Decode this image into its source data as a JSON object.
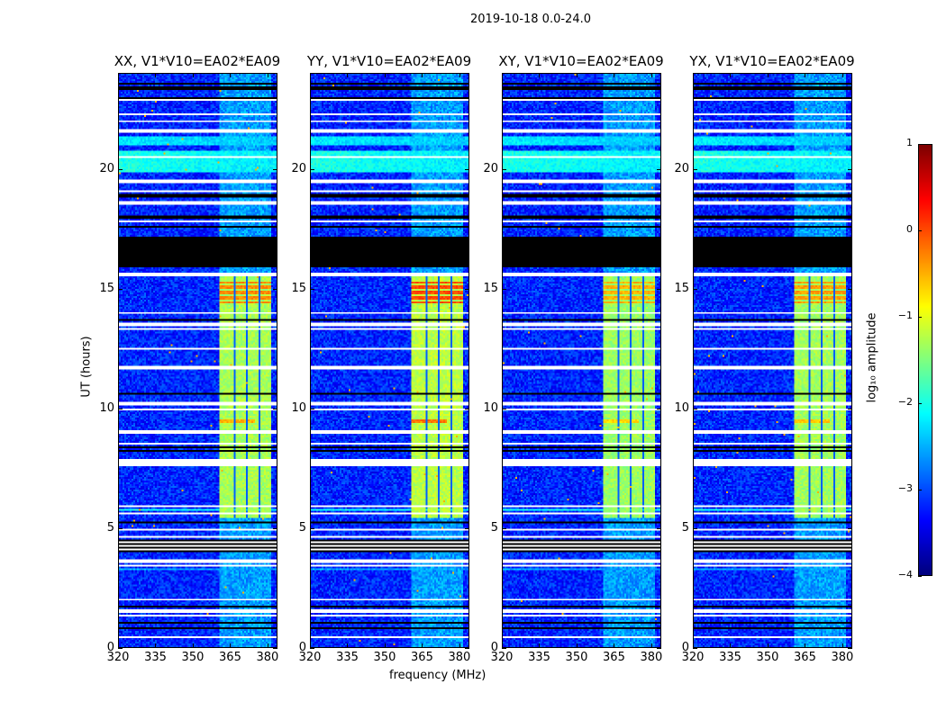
{
  "suptitle": "2019-10-18 0.0-24.0",
  "chart_data": {
    "type": "heatmap",
    "xlabel": "frequency (MHz)",
    "ylabel": "UT (hours)",
    "xlim": [
      320,
      384
    ],
    "ylim": [
      0,
      24
    ],
    "xticks": [
      "320",
      "335",
      "350",
      "365",
      "380"
    ],
    "yticks": [
      "0",
      "5",
      "10",
      "15",
      "20"
    ],
    "colorbar": {
      "label": "log₁₀ amplitude",
      "range": [
        -4,
        1
      ],
      "ticks": [
        "−4",
        "−3",
        "−2",
        "−1",
        "0",
        "1"
      ],
      "colormap": "jet"
    },
    "panels": [
      {
        "title": "XX, V1*V10=EA02*EA09",
        "hot_boost": 0.0,
        "seed": 11
      },
      {
        "title": "YY, V1*V10=EA02*EA09",
        "hot_boost": 0.3,
        "seed": 23
      },
      {
        "title": "XY, V1*V10=EA02*EA09",
        "hot_boost": -0.2,
        "seed": 37
      },
      {
        "title": "YX, V1*V10=EA02*EA09",
        "hot_boost": -0.1,
        "seed": 53
      }
    ],
    "background_log_amplitude": -3.2,
    "rfi_band": {
      "freq_range_mhz": [
        361,
        382
      ],
      "channel_gaps_mhz": [
        367,
        372,
        377
      ],
      "hours": [
        5.4,
        15.5
      ],
      "log_amplitude": -1.3,
      "hot_spots": [
        {
          "hours": [
            14.4,
            15.3
          ],
          "log_amplitude": -0.3
        },
        {
          "hours": [
            9.3,
            9.6
          ],
          "freq_range_mhz": [
            361,
            375
          ],
          "log_amplitude": -0.5
        }
      ]
    },
    "weak_band_log_amplitude": -2.6,
    "wideband_events": [
      {
        "hours": [
          19.9,
          20.8
        ],
        "log_amplitude": -2.0
      },
      {
        "hours": [
          21.0,
          21.4
        ],
        "log_amplitude": -2.2
      },
      {
        "hours": [
          5.7,
          5.8
        ],
        "log_amplitude": -2.0
      },
      {
        "hours": [
          3.2,
          3.3
        ],
        "log_amplitude": -2.5
      }
    ],
    "blanked_hours_black": [
      [
        15.9,
        17.2
      ],
      [
        4.0,
        4.5
      ]
    ],
    "blanked_hours_white": [
      [
        7.6,
        7.9
      ]
    ],
    "flag_rows_white": [
      0.4,
      1.3,
      1.5,
      2.0,
      3.4,
      3.6,
      4.6,
      4.9,
      5.6,
      5.9,
      8.5,
      9.0,
      9.95,
      10.2,
      11.7,
      12.5,
      13.3,
      13.5,
      14.0,
      15.6,
      17.8,
      18.6,
      19.1,
      19.5,
      20.5,
      21.6,
      22.0,
      22.3,
      22.9
    ],
    "flag_rows_black": [
      0.8,
      1.0,
      1.7,
      5.2,
      8.2,
      8.35,
      10.6,
      13.7,
      17.6,
      18.0,
      18.9,
      23.0,
      23.4,
      23.6
    ]
  }
}
